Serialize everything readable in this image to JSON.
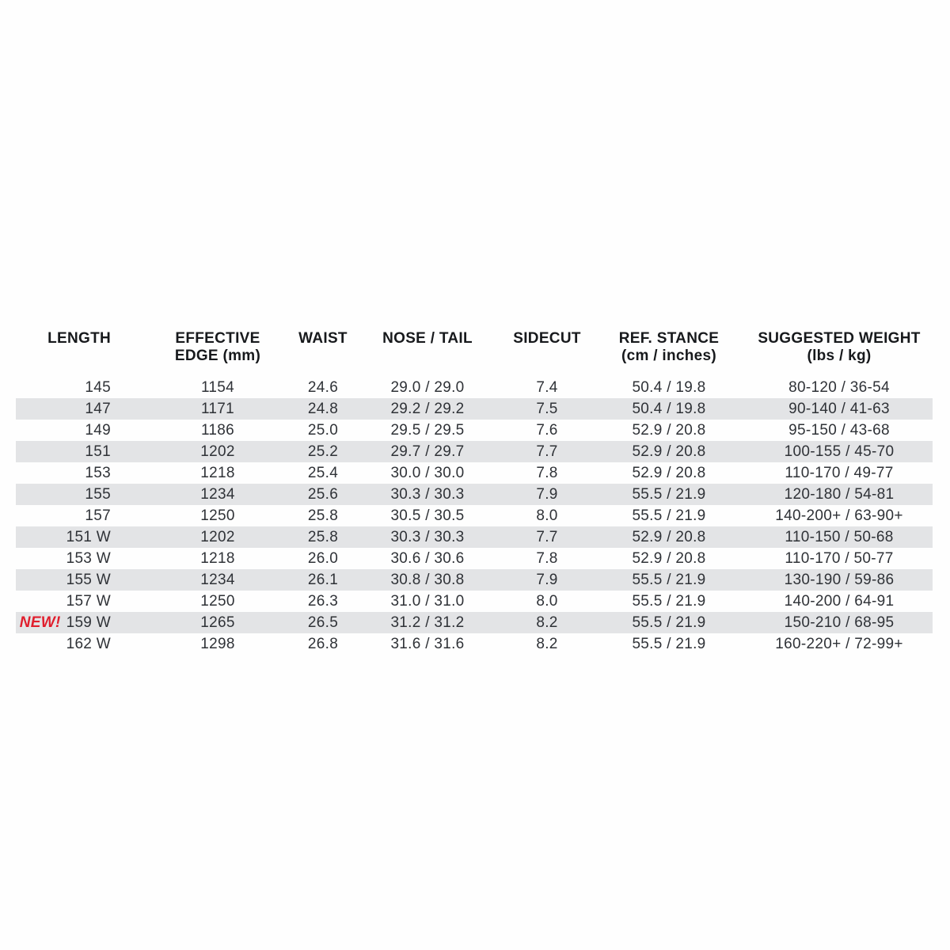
{
  "chart_data": {
    "type": "table",
    "new_badge_label": "NEW!",
    "column_keys": [
      "length",
      "effective-edge",
      "waist",
      "nose-tail",
      "sidecut",
      "ref-stance",
      "suggested-weight"
    ],
    "columns": [
      {
        "line1": "LENGTH",
        "line2": ""
      },
      {
        "line1": "EFFECTIVE",
        "line2": "EDGE (mm)"
      },
      {
        "line1": "WAIST",
        "line2": ""
      },
      {
        "line1": "NOSE / TAIL",
        "line2": ""
      },
      {
        "line1": "SIDECUT",
        "line2": ""
      },
      {
        "line1": "REF. STANCE",
        "line2": "(cm / inches)"
      },
      {
        "line1": "SUGGESTED WEIGHT",
        "line2": "(lbs / kg)"
      }
    ],
    "rows": [
      {
        "shaded": false,
        "is_new": false,
        "cells": [
          "145",
          "1154",
          "24.6",
          "29.0 / 29.0",
          "7.4",
          "50.4 / 19.8",
          "80-120 / 36-54"
        ]
      },
      {
        "shaded": true,
        "is_new": false,
        "cells": [
          "147",
          "1171",
          "24.8",
          "29.2 / 29.2",
          "7.5",
          "50.4 / 19.8",
          "90-140 / 41-63"
        ]
      },
      {
        "shaded": false,
        "is_new": false,
        "cells": [
          "149",
          "1186",
          "25.0",
          "29.5 / 29.5",
          "7.6",
          "52.9 / 20.8",
          "95-150 / 43-68"
        ]
      },
      {
        "shaded": true,
        "is_new": false,
        "cells": [
          "151",
          "1202",
          "25.2",
          "29.7 / 29.7",
          "7.7",
          "52.9 / 20.8",
          "100-155 / 45-70"
        ]
      },
      {
        "shaded": false,
        "is_new": false,
        "cells": [
          "153",
          "1218",
          "25.4",
          "30.0 / 30.0",
          "7.8",
          "52.9 / 20.8",
          "110-170 / 49-77"
        ]
      },
      {
        "shaded": true,
        "is_new": false,
        "cells": [
          "155",
          "1234",
          "25.6",
          "30.3 / 30.3",
          "7.9",
          "55.5 / 21.9",
          "120-180 / 54-81"
        ]
      },
      {
        "shaded": false,
        "is_new": false,
        "cells": [
          "157",
          "1250",
          "25.8",
          "30.5 / 30.5",
          "8.0",
          "55.5 / 21.9",
          "140-200+ / 63-90+"
        ]
      },
      {
        "shaded": true,
        "is_new": false,
        "cells": [
          "151 W",
          "1202",
          "25.8",
          "30.3 / 30.3",
          "7.7",
          "52.9 / 20.8",
          "110-150 / 50-68"
        ]
      },
      {
        "shaded": false,
        "is_new": false,
        "cells": [
          "153 W",
          "1218",
          "26.0",
          "30.6 / 30.6",
          "7.8",
          "52.9 / 20.8",
          "110-170 / 50-77"
        ]
      },
      {
        "shaded": true,
        "is_new": false,
        "cells": [
          "155 W",
          "1234",
          "26.1",
          "30.8 / 30.8",
          "7.9",
          "55.5 / 21.9",
          "130-190 / 59-86"
        ]
      },
      {
        "shaded": false,
        "is_new": false,
        "cells": [
          "157 W",
          "1250",
          "26.3",
          "31.0 / 31.0",
          "8.0",
          "55.5 / 21.9",
          "140-200 / 64-91"
        ]
      },
      {
        "shaded": true,
        "is_new": true,
        "cells": [
          "159 W",
          "1265",
          "26.5",
          "31.2 / 31.2",
          "8.2",
          "55.5 / 21.9",
          "150-210 / 68-95"
        ]
      },
      {
        "shaded": false,
        "is_new": false,
        "cells": [
          "162 W",
          "1298",
          "26.8",
          "31.6 / 31.6",
          "8.2",
          "55.5 / 21.9",
          "160-220+ / 72-99+"
        ]
      }
    ]
  },
  "colors": {
    "background": "#fefefe",
    "stripe": "#e3e4e6",
    "body_text": "#2f3237",
    "header_text": "#17191c",
    "new_badge_red": "#e01e2d"
  }
}
